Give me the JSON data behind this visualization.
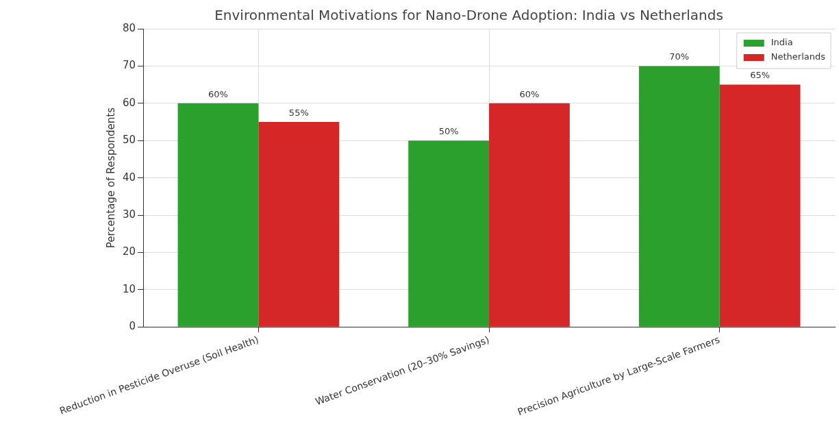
{
  "chart_data": {
    "type": "bar",
    "title": "Environmental Motivations for Nano-Drone Adoption: India vs Netherlands",
    "ylabel": "Percentage of Respondents",
    "categories": [
      "Reduction in Pesticide Overuse (Soil Health)",
      "Water Conservation (20–30% Savings)",
      "Precision Agriculture by Large-Scale Farmers"
    ],
    "series": [
      {
        "name": "India",
        "color": "#2ca02c",
        "values": [
          60,
          50,
          70
        ],
        "value_labels": [
          "60%",
          "50%",
          "70%"
        ]
      },
      {
        "name": "Netherlands",
        "color": "#d62728",
        "values": [
          55,
          60,
          65
        ],
        "value_labels": [
          "55%",
          "60%",
          "65%"
        ]
      }
    ],
    "ylim": [
      0,
      80
    ],
    "yticks": [
      0,
      10,
      20,
      30,
      40,
      50,
      60,
      70,
      80
    ],
    "grid": true,
    "legend": "top right"
  }
}
